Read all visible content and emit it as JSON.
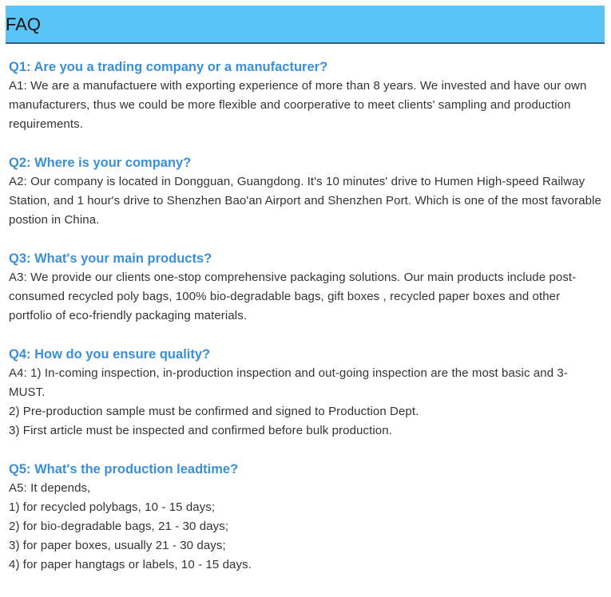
{
  "header": {
    "title": "FAQ"
  },
  "faqs": [
    {
      "q": "Q1: Are you a trading company or a manufacturer?",
      "a": [
        "A1: We are a manufactuere with exporting experience of more than 8 years. We invested and have our own manufacturers, thus we could be more flexible and coorperative to meet clients' sampling and production requirements."
      ]
    },
    {
      "q": "Q2: Where is your company?",
      "a": [
        "A2: Our company is located in Dongguan, Guangdong. It's 10 minutes' drive to Humen High-speed Railway Station, and 1 hour's drive to Shenzhen Bao'an Airport and Shenzhen Port. Which is one of the most favorable postion in China."
      ]
    },
    {
      "q": "Q3: What's your main products?",
      "a": [
        "A3: We provide our clients one-stop comprehensive packaging solutions. Our main products include post-consumed recycled poly bags, 100% bio-degradable bags, gift boxes , recycled paper boxes and other portfolio of eco-friendly packaging materials."
      ]
    },
    {
      "q": "Q4: How do you ensure quality?",
      "a": [
        "A4: 1) In-coming inspection, in-production inspection and out-going inspection are the most basic and 3-MUST.",
        "2) Pre-production sample must be confirmed and signed to Production Dept.",
        "3) First article must be inspected and confirmed before bulk production."
      ]
    },
    {
      "q": "Q5: What's the production leadtime?",
      "a": [
        "A5: It depends,",
        "1) for recycled polybags, 10 - 15 days;",
        "2) for bio-degradable bags, 21 - 30 days;",
        "3) for paper boxes, usually 21 - 30 days;",
        "4) for paper hangtags or labels, 10 - 15 days."
      ]
    }
  ]
}
